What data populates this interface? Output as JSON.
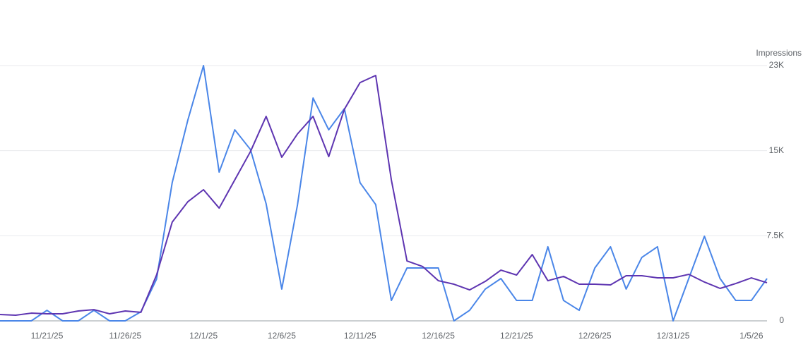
{
  "chart_data": {
    "type": "line",
    "y_label": "Impressions",
    "categories": [
      null,
      null,
      null,
      "11/21/25",
      null,
      null,
      null,
      null,
      "11/26/25",
      null,
      null,
      null,
      null,
      "12/1/25",
      null,
      null,
      null,
      null,
      "12/6/25",
      null,
      null,
      null,
      null,
      "12/11/25",
      null,
      null,
      null,
      null,
      "12/16/25",
      null,
      null,
      null,
      null,
      "12/21/25",
      null,
      null,
      null,
      null,
      "12/26/25",
      null,
      null,
      null,
      null,
      "12/31/25",
      null,
      null,
      null,
      null,
      "1/5/26",
      null
    ],
    "series": [
      {
        "color": "#4a86e8",
        "values": [
          0,
          0,
          0,
          930,
          0,
          0,
          930,
          0,
          0,
          800,
          3670,
          12180,
          17700,
          22500,
          13110,
          16840,
          15100,
          10320,
          2800,
          10190,
          19640,
          16840,
          18700,
          12180,
          10250,
          1800,
          4660,
          4660,
          4660,
          0,
          930,
          2800,
          3730,
          1800,
          1800,
          6530,
          1800,
          930,
          4660,
          6530,
          2800,
          5590,
          6530,
          0,
          3730,
          7460,
          3730,
          1800,
          1800,
          3730
        ]
      },
      {
        "color": "#5e35b1",
        "values": [
          560,
          500,
          680,
          620,
          620,
          870,
          990,
          620,
          870,
          750,
          4040,
          8700,
          10500,
          11560,
          9940,
          12430,
          14920,
          18020,
          14420,
          16470,
          18020,
          14480,
          18650,
          21000,
          21630,
          12430,
          5280,
          4790,
          3540,
          3230,
          2730,
          3480,
          4470,
          4040,
          5840,
          3540,
          3920,
          3230,
          3230,
          3170,
          3980,
          3980,
          3790,
          3790,
          4100,
          3420,
          2860,
          3290,
          3790,
          3360
        ]
      }
    ],
    "ylim": [
      0,
      22500
    ],
    "yticks": [
      0,
      {
        "value": 7500,
        "label": "7.5K"
      },
      {
        "value": 15000,
        "label": "15K"
      },
      {
        "value": 22500,
        "label": "23K"
      }
    ],
    "grid": true
  }
}
